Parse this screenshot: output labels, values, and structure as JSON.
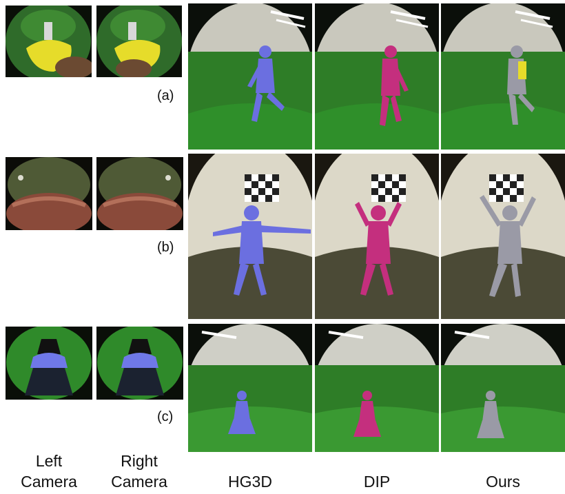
{
  "row_labels": [
    "(a)",
    "(b)",
    "(c)"
  ],
  "columns": {
    "left_camera": "Left\nCamera",
    "right_camera": "Right\nCamera",
    "hg3d": "HG3D",
    "dip": "DIP",
    "ours": "Ours"
  },
  "method_colors": {
    "hg3d": "#6b6fe0",
    "dip": "#c42f7e",
    "ours": "#9a9aa6",
    "fisheye_overlay_a": "#e6dc2a",
    "fisheye_overlay_c": "#6f78e8"
  }
}
